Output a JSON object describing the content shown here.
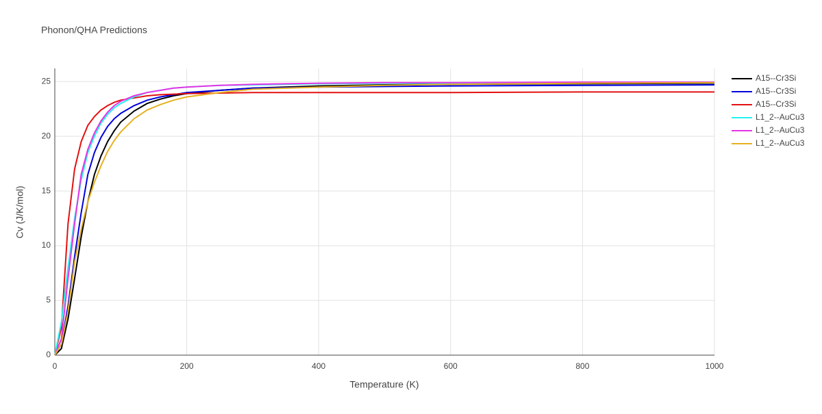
{
  "chart_data": {
    "type": "line",
    "title": "Phonon/QHA Predictions",
    "xlabel": "Temperature (K)",
    "ylabel": "Cv (J/K/mol)",
    "x": [
      0,
      10,
      20,
      30,
      40,
      50,
      60,
      70,
      80,
      90,
      100,
      120,
      140,
      160,
      180,
      200,
      250,
      300,
      400,
      500,
      600,
      800,
      1000
    ],
    "series": [
      {
        "name": "A15--Cr3Si",
        "color": "#000000",
        "values": [
          0,
          0.6,
          3.3,
          7,
          10.8,
          14,
          16.5,
          18.2,
          19.5,
          20.5,
          21.3,
          22.3,
          23,
          23.4,
          23.7,
          23.9,
          24.2,
          24.4,
          24.6,
          24.7,
          24.75,
          24.8,
          24.85
        ]
      },
      {
        "name": "A15--Cr3Si",
        "color": "#0000dd",
        "values": [
          0,
          1,
          4.5,
          9,
          13,
          16.5,
          18.5,
          19.9,
          20.9,
          21.6,
          22.1,
          22.8,
          23.3,
          23.6,
          23.8,
          24,
          24.2,
          24.4,
          24.5,
          24.55,
          24.6,
          24.65,
          24.7
        ]
      },
      {
        "name": "A15--Cr3Si",
        "color": "#e31010",
        "values": [
          0,
          2.5,
          12,
          17,
          19.5,
          21,
          21.8,
          22.4,
          22.8,
          23.1,
          23.3,
          23.5,
          23.7,
          23.8,
          23.85,
          23.9,
          23.95,
          24,
          24,
          24,
          24,
          24.05,
          24.05
        ]
      },
      {
        "name": "L1_2--AuCu3",
        "color": "#22f2f2",
        "values": [
          0,
          3,
          8,
          12.5,
          16,
          18.5,
          20,
          21.2,
          22,
          22.6,
          23,
          23.6,
          24,
          24.2,
          24.4,
          24.5,
          24.65,
          24.7,
          24.8,
          24.85,
          24.85,
          24.9,
          24.9
        ]
      },
      {
        "name": "L1_2--AuCu3",
        "color": "#e533e5",
        "values": [
          0,
          1.5,
          7,
          12,
          16.5,
          18.8,
          20.3,
          21.4,
          22.2,
          22.8,
          23.2,
          23.7,
          24,
          24.2,
          24.4,
          24.5,
          24.65,
          24.75,
          24.85,
          24.9,
          24.9,
          24.95,
          24.95
        ]
      },
      {
        "name": "L1_2--AuCu3",
        "color": "#e6b020",
        "values": [
          0,
          1,
          4,
          8.5,
          11.5,
          14,
          15.8,
          17.3,
          18.6,
          19.6,
          20.4,
          21.6,
          22.4,
          22.9,
          23.3,
          23.6,
          24,
          24.3,
          24.5,
          24.65,
          24.75,
          24.85,
          24.9
        ]
      }
    ],
    "xlim": [
      0,
      1000
    ],
    "xticks": [
      0,
      200,
      400,
      600,
      800,
      1000
    ],
    "ylim": [
      0,
      26.2
    ],
    "yticks": [
      0,
      5,
      10,
      15,
      20,
      25
    ],
    "grid": true,
    "legend": "right"
  }
}
